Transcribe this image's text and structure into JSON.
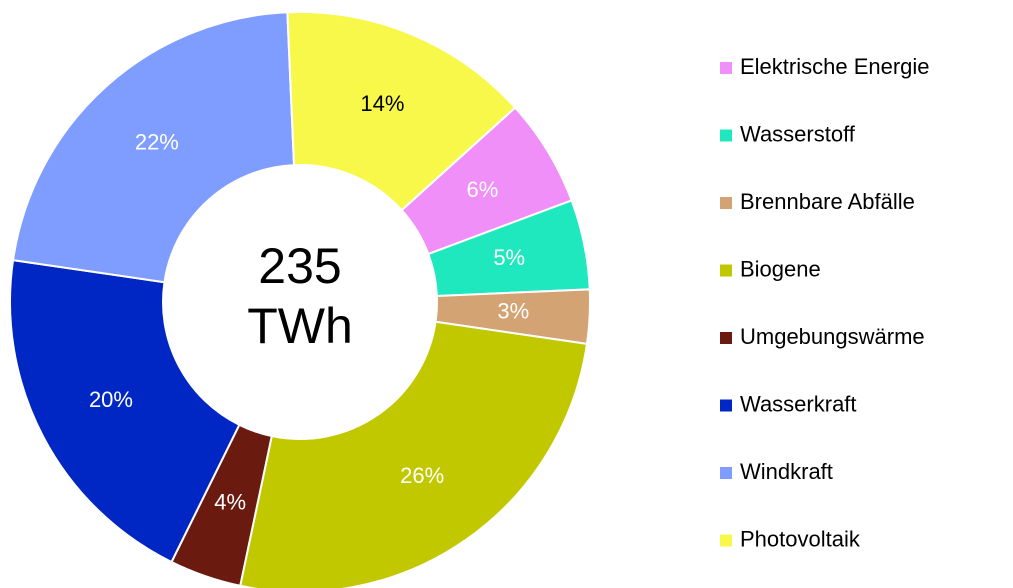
{
  "chart_data": {
    "type": "donut",
    "center_text": [
      "235",
      "TWh"
    ],
    "categories": [
      "Elektrische Energie",
      "Wasserstoff",
      "Brennbare Abfälle",
      "Biogene",
      "Umgebungswärme",
      "Wasserkraft",
      "Windkraft",
      "Photovoltaik"
    ],
    "values": [
      6,
      5,
      3,
      26,
      4,
      20,
      22,
      14
    ],
    "value_labels": [
      "6%",
      "5%",
      "3%",
      "26%",
      "4%",
      "20%",
      "22%",
      "14%"
    ],
    "colors": [
      "#f08ff8",
      "#20e8be",
      "#d4a373",
      "#c2c800",
      "#6b1a10",
      "#0026c4",
      "#7f9cff",
      "#f8f84a"
    ],
    "label_colors": [
      "#ffffff",
      "#ffffff",
      "#ffffff",
      "#ffffff",
      "#ffffff",
      "#ffffff",
      "#ffffff",
      "#000000"
    ],
    "legend": "right"
  }
}
